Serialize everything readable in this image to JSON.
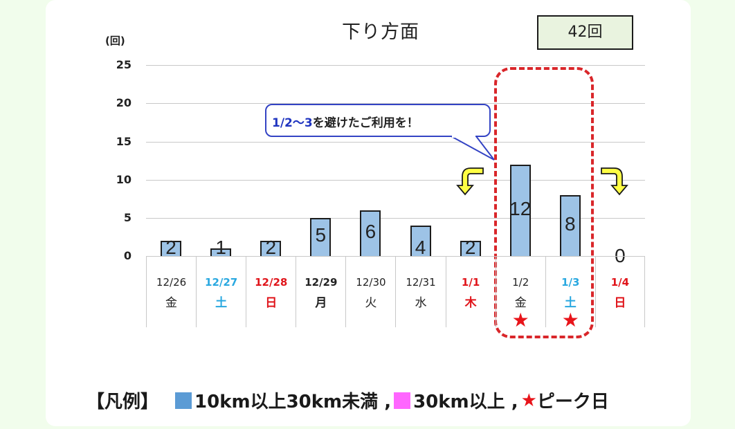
{
  "chart_data": {
    "type": "bar",
    "title": "下り方面",
    "total_label": "42回",
    "ylabel": "(回)",
    "ylim": [
      0,
      25
    ],
    "yticks": [
      "25",
      "20",
      "15",
      "10",
      "5",
      "0"
    ],
    "grid": true,
    "categories": [
      "12/26",
      "12/27",
      "12/28",
      "12/29",
      "12/30",
      "12/31",
      "1/1",
      "1/2",
      "1/3",
      "1/4"
    ],
    "weekdays": [
      "金",
      "土",
      "日",
      "月",
      "火",
      "水",
      "木",
      "金",
      "土",
      "日"
    ],
    "series": [
      {
        "name": "10km以上30km未満",
        "color": "#9dc3e6",
        "values": [
          2,
          1,
          2,
          5,
          6,
          4,
          2,
          12,
          8,
          0
        ]
      },
      {
        "name": "30km以上",
        "color": "#ff66ff",
        "values": [
          0,
          0,
          0,
          0,
          0,
          0,
          0,
          0,
          0,
          0
        ]
      }
    ],
    "value_labels": [
      "2",
      "1",
      "2",
      "5",
      "6",
      "4",
      "2",
      "12",
      "8",
      "0"
    ],
    "peak_days": [
      "1/2",
      "1/3"
    ],
    "annotations": {
      "callout_highlight": "1/2〜3",
      "callout_text": "を避けたご利用を！"
    },
    "legend": {
      "prefix": "【凡例】",
      "item1": "10km以上30km未満 ,",
      "item2": "30km以上 ,",
      "star": "★",
      "item3": "ピーク日"
    },
    "legend_position": "bottom"
  },
  "colors": {
    "weekday": "#222222",
    "saturday": "#29a8e0",
    "holiday": "#e0141a",
    "bar": "#9dc3e6",
    "bar_large": "#ff66ff",
    "peak_box": "#d9262a",
    "arrow": "#ffff44"
  },
  "date_styles": [
    "weekday",
    "saturday",
    "holiday",
    "weekday-bold",
    "weekday",
    "weekday",
    "holiday",
    "weekday",
    "saturday",
    "holiday"
  ]
}
